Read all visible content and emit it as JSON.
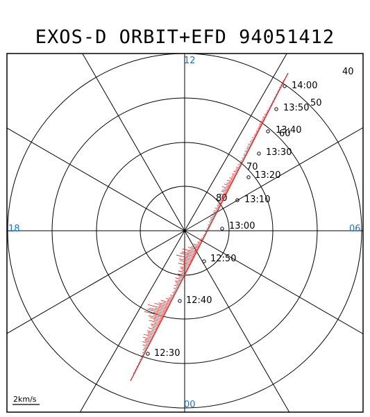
{
  "title": "EXOS-D ORBIT+EFD 94051412",
  "mlt_labels": {
    "top": "12",
    "left": "18",
    "right": "06",
    "bottom": "00"
  },
  "latitude_labels": [
    "80",
    "70",
    "60",
    "50",
    "40"
  ],
  "scale_label": "2km/s",
  "colors": {
    "axis_labels": "#1a73c9",
    "orbit": "#d21f1f",
    "frame": "#000000"
  },
  "orbit": {
    "times": [
      "12:30",
      "12:40",
      "12:50",
      "13:00",
      "13:10",
      "13:20",
      "13:30",
      "13:40",
      "13:50",
      "14:00"
    ]
  }
}
